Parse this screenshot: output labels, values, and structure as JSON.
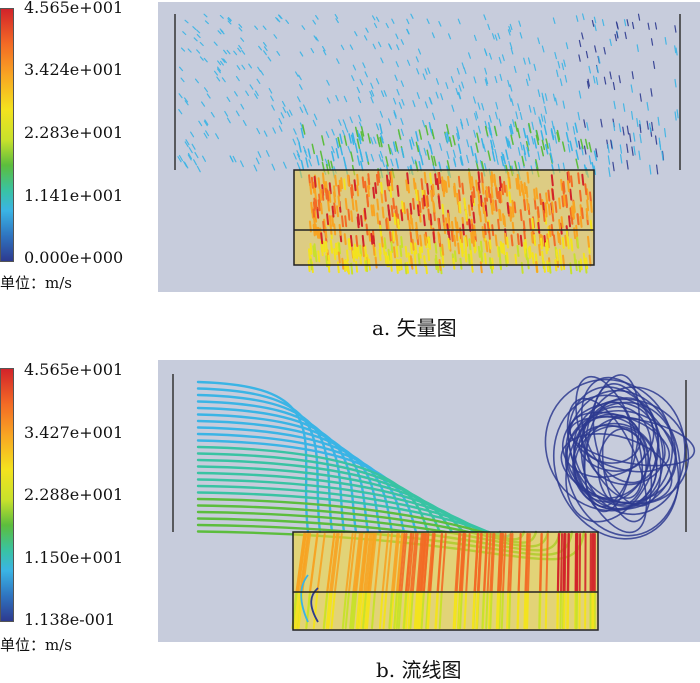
{
  "panels": [
    {
      "caption": "a. 矢量图",
      "unit_label": "单位：m/s",
      "colorbar_ticks": [
        "4.565e+001",
        "3.424e+001",
        "2.283e+001",
        "1.141e+001",
        "0.000e+000"
      ]
    },
    {
      "caption": "b. 流线图",
      "unit_label": "单位：m/s",
      "colorbar_ticks": [
        "4.565e+001",
        "3.427e+001",
        "2.288e+001",
        "1.150e+001",
        "1.138e-001"
      ]
    }
  ],
  "colors": {
    "background": "#c7ccdc",
    "high": "#d2232a",
    "mid_high": "#f8a423",
    "mid": "#f3e31e",
    "mid_low": "#5cbd3d",
    "low": "#3ab4e5",
    "min": "#2d3a8f"
  }
}
